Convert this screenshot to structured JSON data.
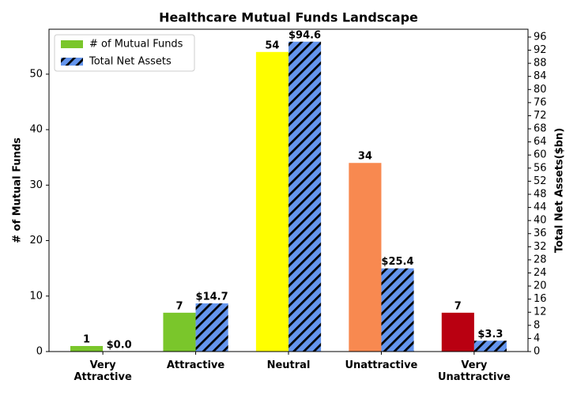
{
  "chart_data": {
    "type": "bar",
    "title": "Healthcare Mutual Funds Landscape",
    "categories": [
      "Very\nAttractive",
      "Attractive",
      "Neutral",
      "Unattractive",
      "Very\nUnattractive"
    ],
    "series": [
      {
        "name": "# of Mutual Funds",
        "values": [
          1,
          7,
          54,
          34,
          7
        ],
        "colors": [
          "#7ac62b",
          "#7ac62b",
          "#ffff00",
          "#f88950",
          "#b90011"
        ]
      },
      {
        "name": "Total Net Assets",
        "axis": "y2",
        "color": "#6495ed",
        "hatch": true,
        "values": [
          0.0,
          14.7,
          94.6,
          25.4,
          3.3
        ],
        "value_labels": [
          "$0.0",
          "$14.7",
          "$94.6",
          "$25.4",
          "$3.3"
        ]
      }
    ],
    "y_label": "# of Mutual Funds",
    "y2_label": "Total Net Assets($bn)",
    "ylim": [
      0,
      58.1
    ],
    "yticks": [
      0,
      10,
      20,
      30,
      40,
      50
    ],
    "y2lim": [
      0,
      98.4
    ],
    "y2ticks": [
      0,
      4,
      8,
      12,
      16,
      20,
      24,
      28,
      32,
      36,
      40,
      44,
      48,
      52,
      56,
      60,
      64,
      68,
      72,
      76,
      80,
      84,
      88,
      92,
      96
    ],
    "legend": "upper left"
  }
}
